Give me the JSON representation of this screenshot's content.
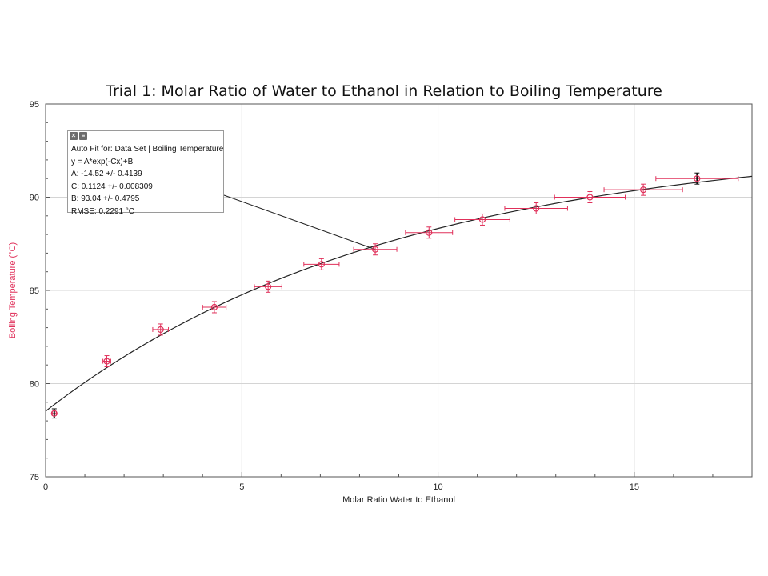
{
  "chart_data": {
    "type": "scatter",
    "title": "Trial 1: Molar Ratio of Water to Ethanol in Relation to Boiling Temperature",
    "xlabel": "Molar Ratio Water to Ethanol",
    "ylabel": "Boiling Temperature (°C)",
    "xlim": [
      0,
      18
    ],
    "ylim": [
      75,
      95
    ],
    "x_ticks": [
      0,
      5,
      10,
      15
    ],
    "y_ticks": [
      75,
      80,
      85,
      90,
      95
    ],
    "grid": true,
    "series": [
      {
        "type": "scatter-with-errorbars",
        "color": "#e0305a",
        "points": [
          {
            "x": 0.22,
            "y": 78.4,
            "xerr": 0.05,
            "yerr": 0.25
          },
          {
            "x": 1.56,
            "y": 81.2,
            "xerr": 0.1,
            "yerr": 0.3
          },
          {
            "x": 2.93,
            "y": 82.9,
            "xerr": 0.2,
            "yerr": 0.3
          },
          {
            "x": 4.3,
            "y": 84.1,
            "xerr": 0.3,
            "yerr": 0.3
          },
          {
            "x": 5.67,
            "y": 85.2,
            "xerr": 0.35,
            "yerr": 0.3
          },
          {
            "x": 7.03,
            "y": 86.4,
            "xerr": 0.45,
            "yerr": 0.3
          },
          {
            "x": 8.4,
            "y": 87.2,
            "xerr": 0.55,
            "yerr": 0.3
          },
          {
            "x": 9.77,
            "y": 88.1,
            "xerr": 0.6,
            "yerr": 0.3
          },
          {
            "x": 11.13,
            "y": 88.8,
            "xerr": 0.7,
            "yerr": 0.3
          },
          {
            "x": 12.5,
            "y": 89.4,
            "xerr": 0.8,
            "yerr": 0.3
          },
          {
            "x": 13.87,
            "y": 90.0,
            "xerr": 0.9,
            "yerr": 0.3
          },
          {
            "x": 15.23,
            "y": 90.4,
            "xerr": 1.0,
            "yerr": 0.3
          },
          {
            "x": 16.6,
            "y": 91.0,
            "xerr": 1.05,
            "yerr": 0.3
          }
        ]
      }
    ],
    "fit": {
      "A": -14.52,
      "C": 0.1124,
      "B": 93.04,
      "x_range": [
        0,
        18
      ]
    }
  },
  "fit_box": {
    "title": "Auto Fit for: Data Set | Boiling Temperature",
    "equation": "y = A*exp(-Cx)+B",
    "param_a": "A: -14.52 +/- 0.4139",
    "param_c": "C: 0.1124 +/- 0.008309",
    "param_b": "B: 93.04 +/- 0.4795",
    "rmse": "RMSE: 0.2291 °C",
    "leader_target": {
      "x": 8.4,
      "y": 87.2
    }
  }
}
